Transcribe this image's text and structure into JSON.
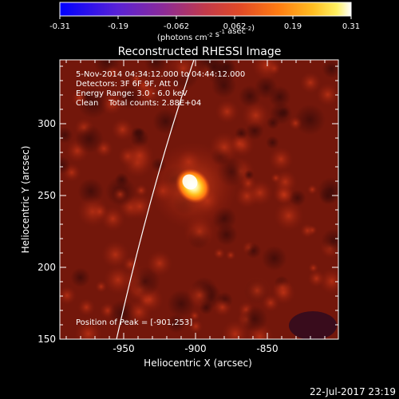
{
  "colorbar": {
    "tick_labels": [
      "-0.31",
      "-0.19",
      "-0.062",
      "0.062",
      "0.19",
      "0.31"
    ],
    "units_main": "(photons cm",
    "units_sup1": "-2",
    "units_mid1": " s",
    "units_sup2": "-1",
    "units_mid2": " asec",
    "units_sup3": "-2",
    "units_end": ")",
    "stops": [
      "#0000ff",
      "#6a2cc6",
      "#b0306a",
      "#e0442e",
      "#ff7a14",
      "#ffb51c",
      "#ffe84a",
      "#ffffff"
    ]
  },
  "title": "Reconstructed RHESSI Image",
  "annotations": {
    "time": "5-Nov-2014 04:34:12.000 to 04:44:12.000",
    "detectors": "Detectors: 3F 6F 9F, Att 0",
    "energy": "Energy Range: 3.0 - 6.0 keV",
    "clean": "Clean    Total counts: 2.88E+04",
    "peak": "Position of Peak = [-901,253]"
  },
  "axes": {
    "xlabel": "Heliocentric X (arcsec)",
    "ylabel": "Heliocentric Y (arcsec)",
    "xticks": [
      {
        "value": -950,
        "label": "-950"
      },
      {
        "value": -900,
        "label": "-900"
      },
      {
        "value": -850,
        "label": "-850"
      }
    ],
    "yticks": [
      {
        "value": 150,
        "label": "150"
      },
      {
        "value": 200,
        "label": "200"
      },
      {
        "value": 250,
        "label": "250"
      },
      {
        "value": 300,
        "label": "300"
      }
    ],
    "xlim": [
      -997,
      -895
    ],
    "ylim": [
      150,
      345
    ]
  },
  "timestamp": "22-Jul-2017 23:19"
}
